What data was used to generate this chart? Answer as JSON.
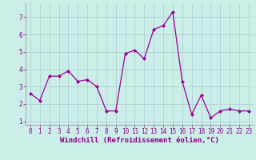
{
  "x": [
    0,
    1,
    2,
    3,
    4,
    5,
    6,
    7,
    8,
    9,
    10,
    11,
    12,
    13,
    14,
    15,
    16,
    17,
    18,
    19,
    20,
    21,
    22,
    23
  ],
  "y": [
    2.6,
    2.2,
    3.6,
    3.6,
    3.9,
    3.3,
    3.4,
    3.0,
    1.6,
    1.6,
    4.9,
    5.1,
    4.6,
    6.3,
    6.5,
    7.3,
    3.3,
    1.4,
    2.5,
    1.2,
    1.6,
    1.7,
    1.6,
    1.6
  ],
  "line_color": "#990099",
  "marker": "D",
  "marker_size": 2.0,
  "linewidth": 0.9,
  "bg_color": "#cceee8",
  "grid_color": "#aacccc",
  "xlabel": "Windchill (Refroidissement éolien,°C)",
  "xlim": [
    -0.5,
    23.5
  ],
  "ylim": [
    0.8,
    7.8
  ],
  "yticks": [
    1,
    2,
    3,
    4,
    5,
    6,
    7
  ],
  "xticks": [
    0,
    1,
    2,
    3,
    4,
    5,
    6,
    7,
    8,
    9,
    10,
    11,
    12,
    13,
    14,
    15,
    16,
    17,
    18,
    19,
    20,
    21,
    22,
    23
  ],
  "tick_label_size": 5.5,
  "xlabel_size": 6.5,
  "label_color": "#880088",
  "spine_color": "#888888"
}
